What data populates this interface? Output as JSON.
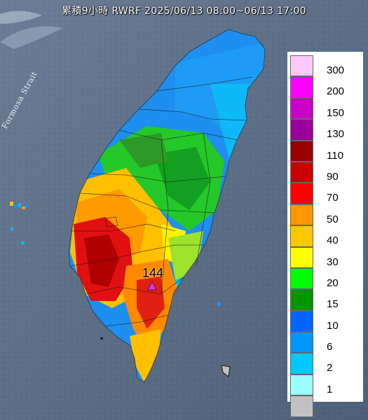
{
  "title": "累積9小時 RWRF 2025/06/13 08:00~06/13 17:00",
  "strait_label": "Formosa Strait",
  "peak": {
    "value": "144",
    "marker_color": "#d63ad6"
  },
  "legend": [
    {
      "label": "300",
      "color": "#fdc9fd"
    },
    {
      "label": "200",
      "color": "#fd00fd"
    },
    {
      "label": "150",
      "color": "#c800c8"
    },
    {
      "label": "130",
      "color": "#9c009c"
    },
    {
      "label": "110",
      "color": "#960000"
    },
    {
      "label": "90",
      "color": "#c80000"
    },
    {
      "label": "70",
      "color": "#fe0000"
    },
    {
      "label": "50",
      "color": "#fe9600"
    },
    {
      "label": "40",
      "color": "#fec800"
    },
    {
      "label": "30",
      "color": "#fefe00"
    },
    {
      "label": "20",
      "color": "#00fe00"
    },
    {
      "label": "15",
      "color": "#009600"
    },
    {
      "label": "10",
      "color": "#0064fe"
    },
    {
      "label": "6",
      "color": "#0096fe"
    },
    {
      "label": "2",
      "color": "#00c8fe"
    },
    {
      "label": "1",
      "color": "#9bfefe"
    },
    {
      "label": "",
      "color": "#c1c1c1"
    }
  ]
}
